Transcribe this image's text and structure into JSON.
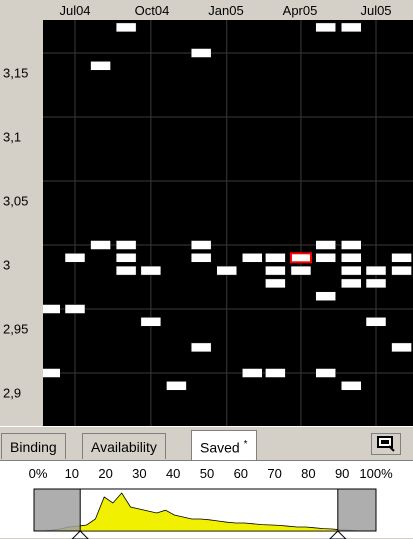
{
  "top_axis": {
    "labels": [
      "Jul04",
      "Oct04",
      "Jan05",
      "Apr05",
      "Jul05"
    ]
  },
  "left_axis": {
    "labels": [
      "3,15",
      "3,1",
      "3,05",
      "3",
      "2,95",
      "2,9"
    ]
  },
  "chart_data": {
    "type": "scatter",
    "x_axis": "date",
    "x_ticks": [
      "Jul04",
      "Oct04",
      "Jan05",
      "Apr05",
      "Jul05"
    ],
    "y_ticks": [
      3.15,
      3.1,
      3.05,
      3.0,
      2.95,
      2.9
    ],
    "ylim": [
      2.88,
      3.19
    ],
    "grid": true,
    "marker_color": "#ffffff",
    "highlight_color": "#ff0000",
    "points": [
      {
        "x": "2004-06-01",
        "y": 2.95
      },
      {
        "x": "2004-06-01",
        "y": 2.9
      },
      {
        "x": "2004-07-01",
        "y": 2.99
      },
      {
        "x": "2004-07-01",
        "y": 2.95
      },
      {
        "x": "2004-08-01",
        "y": 3.14
      },
      {
        "x": "2004-08-01",
        "y": 3.0
      },
      {
        "x": "2004-09-01",
        "y": 3.17
      },
      {
        "x": "2004-09-01",
        "y": 3.0
      },
      {
        "x": "2004-09-01",
        "y": 2.99
      },
      {
        "x": "2004-09-01",
        "y": 2.98
      },
      {
        "x": "2004-10-01",
        "y": 2.98
      },
      {
        "x": "2004-10-01",
        "y": 2.94
      },
      {
        "x": "2004-11-01",
        "y": 2.89
      },
      {
        "x": "2004-12-01",
        "y": 3.15
      },
      {
        "x": "2004-12-01",
        "y": 3.0
      },
      {
        "x": "2004-12-01",
        "y": 2.99
      },
      {
        "x": "2004-12-01",
        "y": 2.92
      },
      {
        "x": "2005-01-01",
        "y": 2.98
      },
      {
        "x": "2005-02-01",
        "y": 2.99
      },
      {
        "x": "2005-02-01",
        "y": 2.9
      },
      {
        "x": "2005-03-01",
        "y": 2.99
      },
      {
        "x": "2005-03-01",
        "y": 2.98
      },
      {
        "x": "2005-03-01",
        "y": 2.97
      },
      {
        "x": "2005-03-01",
        "y": 2.9
      },
      {
        "x": "2005-04-01",
        "y": 2.99,
        "highlight": true
      },
      {
        "x": "2005-04-01",
        "y": 2.98
      },
      {
        "x": "2005-05-01",
        "y": 3.17
      },
      {
        "x": "2005-05-01",
        "y": 3.0
      },
      {
        "x": "2005-05-01",
        "y": 2.99
      },
      {
        "x": "2005-05-01",
        "y": 2.96
      },
      {
        "x": "2005-05-01",
        "y": 2.9
      },
      {
        "x": "2005-06-01",
        "y": 3.17
      },
      {
        "x": "2005-06-01",
        "y": 3.0
      },
      {
        "x": "2005-06-01",
        "y": 2.99
      },
      {
        "x": "2005-06-01",
        "y": 2.98
      },
      {
        "x": "2005-06-01",
        "y": 2.97
      },
      {
        "x": "2005-06-01",
        "y": 2.89
      },
      {
        "x": "2005-07-01",
        "y": 2.98
      },
      {
        "x": "2005-07-01",
        "y": 2.97
      },
      {
        "x": "2005-07-01",
        "y": 2.94
      },
      {
        "x": "2005-08-01",
        "y": 2.99
      },
      {
        "x": "2005-08-01",
        "y": 2.98
      },
      {
        "x": "2005-08-01",
        "y": 2.92
      }
    ]
  },
  "tabs": {
    "binding": "Binding",
    "availability": "Availability",
    "saved": "Saved",
    "saved_marker": "*"
  },
  "histogram": {
    "labels": [
      "0%",
      "10",
      "20",
      "30",
      "40",
      "50",
      "60",
      "70",
      "80",
      "90",
      "100%"
    ],
    "range_low": 0.1,
    "range_high": 0.9,
    "fill_color": "#f0f000",
    "masked_color": "#a0a0a0"
  }
}
